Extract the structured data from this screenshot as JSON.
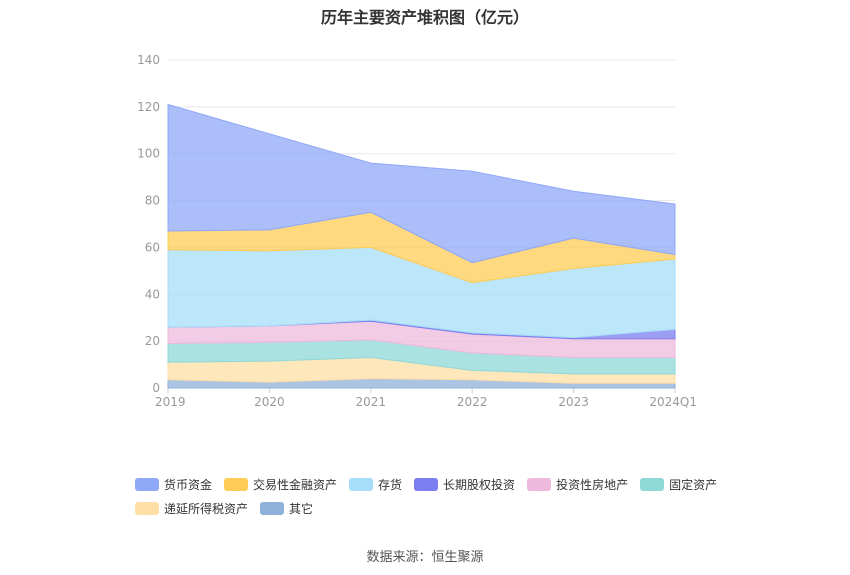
{
  "chart_data": {
    "type": "area",
    "stacked": true,
    "title": "历年主要资产堆积图（亿元）",
    "categories": [
      "2019",
      "2020",
      "2021",
      "2022",
      "2023",
      "2024Q1"
    ],
    "ylim": [
      0,
      140
    ],
    "yticks": [
      "0",
      "20",
      "40",
      "60",
      "80",
      "100",
      "120",
      "140"
    ],
    "grid": true,
    "legend_position": "bottom",
    "series": [
      {
        "name": "其它",
        "color": "#8FB0DB",
        "values": [
          3.5,
          2.5,
          4.0,
          3.5,
          2.0,
          2.0
        ]
      },
      {
        "name": "递延所得税资产",
        "color": "#FFDFA6",
        "values": [
          7.5,
          9.0,
          9.0,
          4.0,
          4.0,
          4.0
        ]
      },
      {
        "name": "固定资产",
        "color": "#8ED8D8",
        "values": [
          8.0,
          8.0,
          7.5,
          7.5,
          7.0,
          7.0
        ]
      },
      {
        "name": "投资性房地产",
        "color": "#EDB9DC",
        "values": [
          7.0,
          7.0,
          8.0,
          8.0,
          8.0,
          8.0
        ]
      },
      {
        "name": "长期股权投资",
        "color": "#7B7EF0",
        "values": [
          0.0,
          0.0,
          0.5,
          0.5,
          0.5,
          4.0
        ]
      },
      {
        "name": "存货",
        "color": "#A6DDF8",
        "values": [
          33.0,
          32.0,
          31.0,
          21.5,
          29.5,
          30.0
        ]
      },
      {
        "name": "交易性金融资产",
        "color": "#FFCC55",
        "values": [
          8.0,
          9.0,
          15.0,
          8.5,
          13.0,
          2.0
        ]
      },
      {
        "name": "货币资金",
        "color": "#8FA8F8",
        "values": [
          54.0,
          41.0,
          21.0,
          39.0,
          20.0,
          21.5
        ]
      }
    ],
    "legend_order": [
      "货币资金",
      "交易性金融资产",
      "存货",
      "长期股权投资",
      "投资性房地产",
      "固定资产",
      "递延所得税资产",
      "其它"
    ]
  },
  "source": "数据来源：恒生聚源"
}
